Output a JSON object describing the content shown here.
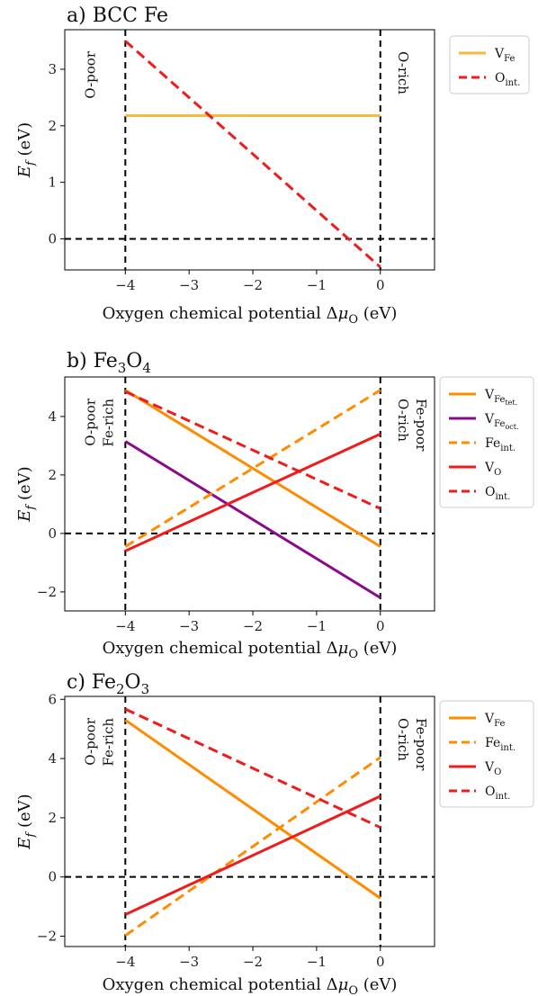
{
  "chart_data": [
    {
      "type": "line",
      "title": "a) BCC Fe",
      "xlabel": "Oxygen chemical potential Δμ_O (eV)",
      "ylabel": "E_f (eV)",
      "xlim": [
        -4.95,
        0.85
      ],
      "ylim": [
        -0.55,
        3.7
      ],
      "xticks": [
        -4,
        -3,
        -2,
        -1,
        0
      ],
      "yticks": [
        0,
        1,
        2,
        3
      ],
      "grid": false,
      "legend_position": "right",
      "annotations": {
        "left": [
          "O-poor"
        ],
        "right": [
          "O-rich"
        ]
      },
      "series": [
        {
          "name": "V_Fe",
          "main": "V",
          "sub": "Fe",
          "color": "#f5b942",
          "style": "solid",
          "x": [
            -4,
            0
          ],
          "y": [
            2.18,
            2.18
          ]
        },
        {
          "name": "O_int.",
          "main": "O",
          "sub": "int.",
          "color": "#ee1c1c",
          "style": "dashed",
          "x": [
            -4,
            0
          ],
          "y": [
            3.5,
            -0.5
          ]
        }
      ]
    },
    {
      "type": "line",
      "title": "b) Fe3O4",
      "title_parts": {
        "main": "b) Fe",
        "sub1": "3",
        "mid": "O",
        "sub2": "4"
      },
      "xlabel": "Oxygen chemical potential Δμ_O (eV)",
      "ylabel": "E_f (eV)",
      "xlim": [
        -4.95,
        0.85
      ],
      "ylim": [
        -2.65,
        5.35
      ],
      "xticks": [
        -4,
        -3,
        -2,
        -1,
        0
      ],
      "yticks": [
        -2,
        0,
        2,
        4
      ],
      "grid": false,
      "legend_position": "right",
      "annotations": {
        "left": [
          "O-poor",
          "Fe-rich"
        ],
        "right": [
          "O-rich",
          "Fe-poor"
        ]
      },
      "series": [
        {
          "name": "V_Fe_tet.",
          "main": "V",
          "sub": "Fe",
          "subsub": "tet.",
          "color": "#ff8c00",
          "style": "solid",
          "x": [
            -4,
            0
          ],
          "y": [
            4.9,
            -0.45
          ]
        },
        {
          "name": "V_Fe_oct.",
          "main": "V",
          "sub": "Fe",
          "subsub": "oct.",
          "color": "#8b0a8b",
          "style": "solid",
          "x": [
            -4,
            0
          ],
          "y": [
            3.15,
            -2.2
          ]
        },
        {
          "name": "Fe_int.",
          "main": "Fe",
          "sub": "int.",
          "color": "#ff8c00",
          "style": "dashed",
          "x": [
            -4,
            0
          ],
          "y": [
            -0.45,
            4.9
          ]
        },
        {
          "name": "V_O",
          "main": "V",
          "sub": "O",
          "color": "#ee1c1c",
          "style": "solid",
          "x": [
            -4,
            0
          ],
          "y": [
            -0.6,
            3.4
          ]
        },
        {
          "name": "O_int.",
          "main": "O",
          "sub": "int.",
          "color": "#ee1c1c",
          "style": "dashed",
          "x": [
            -4,
            0
          ],
          "y": [
            4.85,
            0.85
          ]
        }
      ]
    },
    {
      "type": "line",
      "title": "c) Fe2O3",
      "title_parts": {
        "main": "c) Fe",
        "sub1": "2",
        "mid": "O",
        "sub2": "3"
      },
      "xlabel": "Oxygen chemical potential Δμ_O (eV)",
      "ylabel": "E_f (eV)",
      "xlim": [
        -4.95,
        0.85
      ],
      "ylim": [
        -2.35,
        6.1
      ],
      "xticks": [
        -4,
        -3,
        -2,
        -1,
        0
      ],
      "yticks": [
        -2,
        0,
        2,
        4,
        6
      ],
      "grid": false,
      "legend_position": "right",
      "annotations": {
        "left": [
          "O-poor",
          "Fe-rich"
        ],
        "right": [
          "O-rich",
          "Fe-poor"
        ]
      },
      "series": [
        {
          "name": "V_Fe",
          "main": "V",
          "sub": "Fe",
          "color": "#ff8c00",
          "style": "solid",
          "x": [
            -4,
            0
          ],
          "y": [
            5.3,
            -0.72
          ]
        },
        {
          "name": "Fe_int.",
          "main": "Fe",
          "sub": "int.",
          "color": "#ff8c00",
          "style": "dashed",
          "x": [
            -4,
            0
          ],
          "y": [
            -1.98,
            4.04
          ]
        },
        {
          "name": "V_O",
          "main": "V",
          "sub": "O",
          "color": "#ee1c1c",
          "style": "solid",
          "x": [
            -4,
            0
          ],
          "y": [
            -1.27,
            2.73
          ]
        },
        {
          "name": "O_int.",
          "main": "O",
          "sub": "int.",
          "color": "#ee1c1c",
          "style": "dashed",
          "x": [
            -4,
            0
          ],
          "y": [
            5.67,
            1.67
          ]
        }
      ]
    }
  ]
}
